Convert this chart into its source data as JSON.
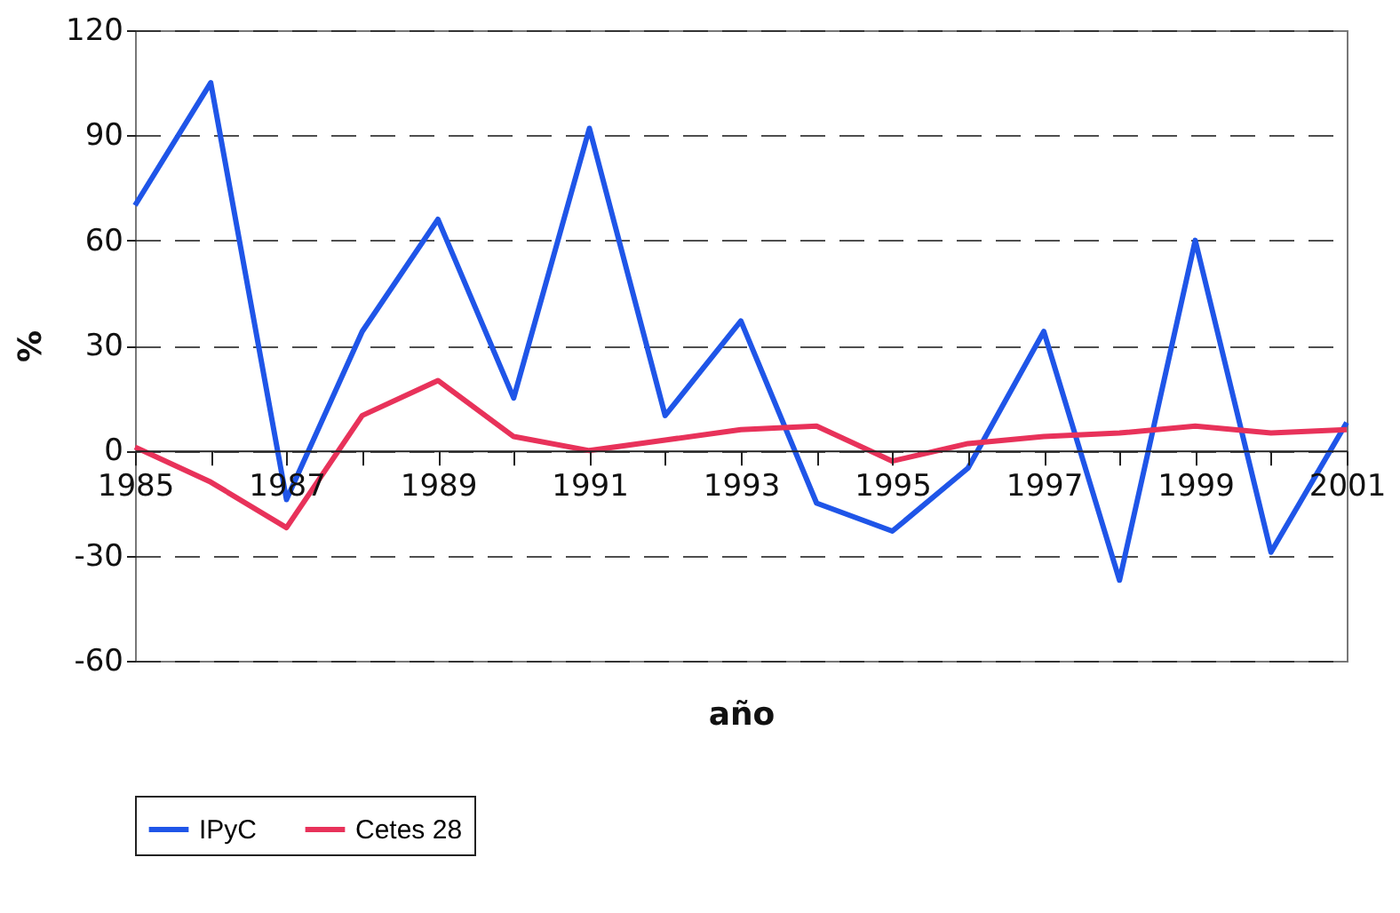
{
  "chart_data": {
    "type": "line",
    "xlabel": "año",
    "ylabel": "%",
    "x": [
      1985,
      1986,
      1987,
      1988,
      1989,
      1990,
      1991,
      1992,
      1993,
      1994,
      1995,
      1996,
      1997,
      1998,
      1999,
      2000,
      2001
    ],
    "series": [
      {
        "name": "IPyC",
        "color": "#1f55e8",
        "values": [
          70,
          105,
          -14,
          34,
          66,
          15,
          92,
          10,
          37,
          -15,
          -23,
          -5,
          34,
          -37,
          60,
          -29,
          8
        ]
      },
      {
        "name": "Cetes 28",
        "color": "#e8325a",
        "values": [
          1,
          -9,
          -22,
          10,
          20,
          4,
          0,
          3,
          6,
          7,
          -3,
          2,
          4,
          5,
          7,
          5,
          6
        ]
      }
    ],
    "xlim": [
      1985,
      2001
    ],
    "xticks": [
      1985,
      {
        "value": 1986,
        "label": null
      },
      1987,
      {
        "value": 1988,
        "label": null
      },
      1989,
      {
        "value": 1990,
        "label": null
      },
      1991,
      {
        "value": 1992,
        "label": null
      },
      1993,
      {
        "value": 1994,
        "label": null
      },
      1995,
      {
        "value": 1996,
        "label": null
      },
      1997,
      {
        "value": 1998,
        "label": null
      },
      1999,
      {
        "value": 2000,
        "label": null
      },
      2001
    ],
    "ylim": [
      -60,
      120
    ],
    "yticks": [
      -60,
      -30,
      0,
      30,
      60,
      90,
      120
    ],
    "grid": "y",
    "legend": "bottom",
    "marker": "none",
    "line_style": "solid"
  }
}
